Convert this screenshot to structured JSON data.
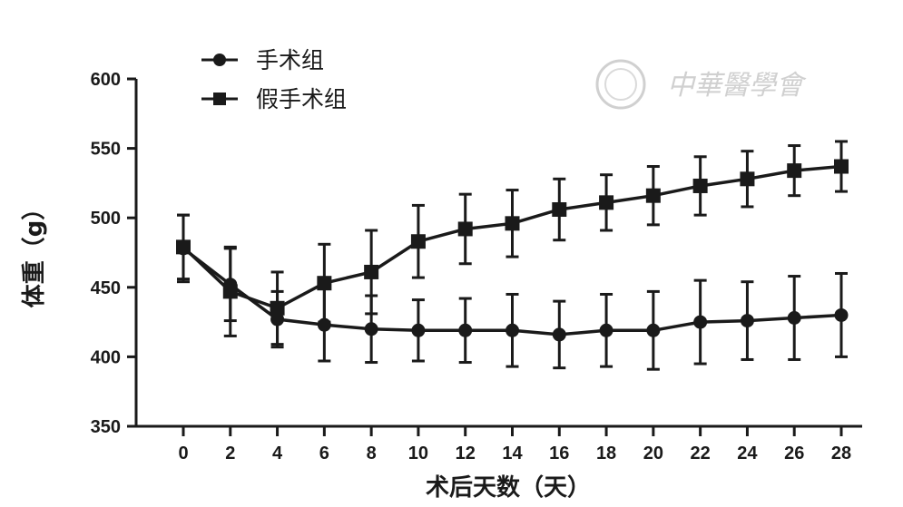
{
  "chart_data": {
    "type": "line",
    "xlabel": "术后天数（天）",
    "ylabel": "体重（g）",
    "x": [
      0,
      2,
      4,
      6,
      8,
      10,
      12,
      14,
      16,
      18,
      20,
      22,
      24,
      26,
      28
    ],
    "ylim": [
      350,
      600
    ],
    "yticks": [
      350,
      400,
      450,
      500,
      550,
      600
    ],
    "grid": false,
    "legend_position": "top-left",
    "series": [
      {
        "name": "手术组",
        "marker": "circle",
        "color": "#1a1a1a",
        "values": [
          478,
          452,
          427,
          423,
          420,
          419,
          419,
          419,
          416,
          419,
          419,
          425,
          426,
          428,
          430
        ],
        "errors": [
          24,
          26,
          20,
          26,
          24,
          22,
          23,
          26,
          24,
          26,
          28,
          30,
          28,
          30,
          30
        ]
      },
      {
        "name": "假手术组",
        "marker": "square",
        "color": "#1a1a1a",
        "values": [
          479,
          447,
          435,
          453,
          461,
          483,
          492,
          496,
          506,
          511,
          516,
          523,
          528,
          534,
          537
        ],
        "errors": [
          23,
          32,
          26,
          28,
          30,
          26,
          25,
          24,
          22,
          20,
          21,
          21,
          20,
          18,
          18
        ]
      }
    ]
  },
  "watermark": {
    "text": "中華醫學會",
    "color": "#c8c8c8"
  }
}
